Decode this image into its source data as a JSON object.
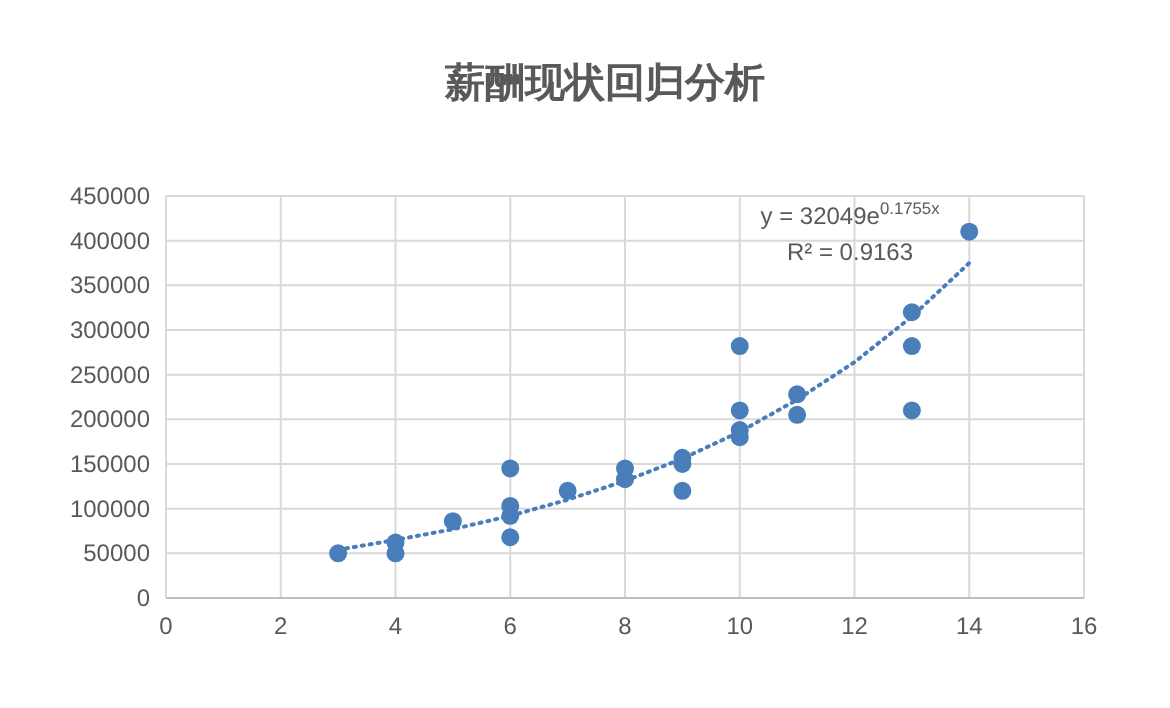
{
  "chart_data": {
    "type": "scatter",
    "title": "薪酬现状回归分析",
    "xlim": [
      0,
      16
    ],
    "xticks": [
      0,
      2,
      4,
      6,
      8,
      10,
      12,
      14,
      16
    ],
    "ylim": [
      0,
      450000
    ],
    "yticks": [
      0,
      50000,
      100000,
      150000,
      200000,
      250000,
      300000,
      350000,
      400000,
      450000
    ],
    "grid": true,
    "marker": "circle",
    "series": [
      {
        "type": "scatter",
        "color": "#4a7ebb",
        "x": [
          3,
          4,
          4,
          5,
          6,
          6,
          6,
          6,
          7,
          8,
          8,
          9,
          9,
          9,
          10,
          10,
          10,
          10,
          11,
          11,
          13,
          13,
          13,
          14
        ],
        "values": [
          50000,
          62000,
          50000,
          86000,
          145000,
          103000,
          92000,
          68000,
          120000,
          145000,
          133000,
          157000,
          150000,
          120000,
          282000,
          210000,
          188000,
          180000,
          228000,
          205000,
          320000,
          282000,
          210000,
          410000
        ]
      },
      {
        "type": "line",
        "color": "#4a7ebb",
        "line_style": "dotted",
        "marker": "none",
        "x": [
          3,
          4,
          5,
          6,
          7,
          8,
          9,
          10,
          11,
          12,
          13,
          14
        ],
        "values": [
          54000,
          65000,
          77000,
          92000,
          110000,
          131000,
          156000,
          186000,
          222000,
          264000,
          315000,
          375000
        ]
      }
    ],
    "annotations": [
      "y = 32049e$^{0.1755x}$",
      "R² = 0.9163"
    ]
  }
}
